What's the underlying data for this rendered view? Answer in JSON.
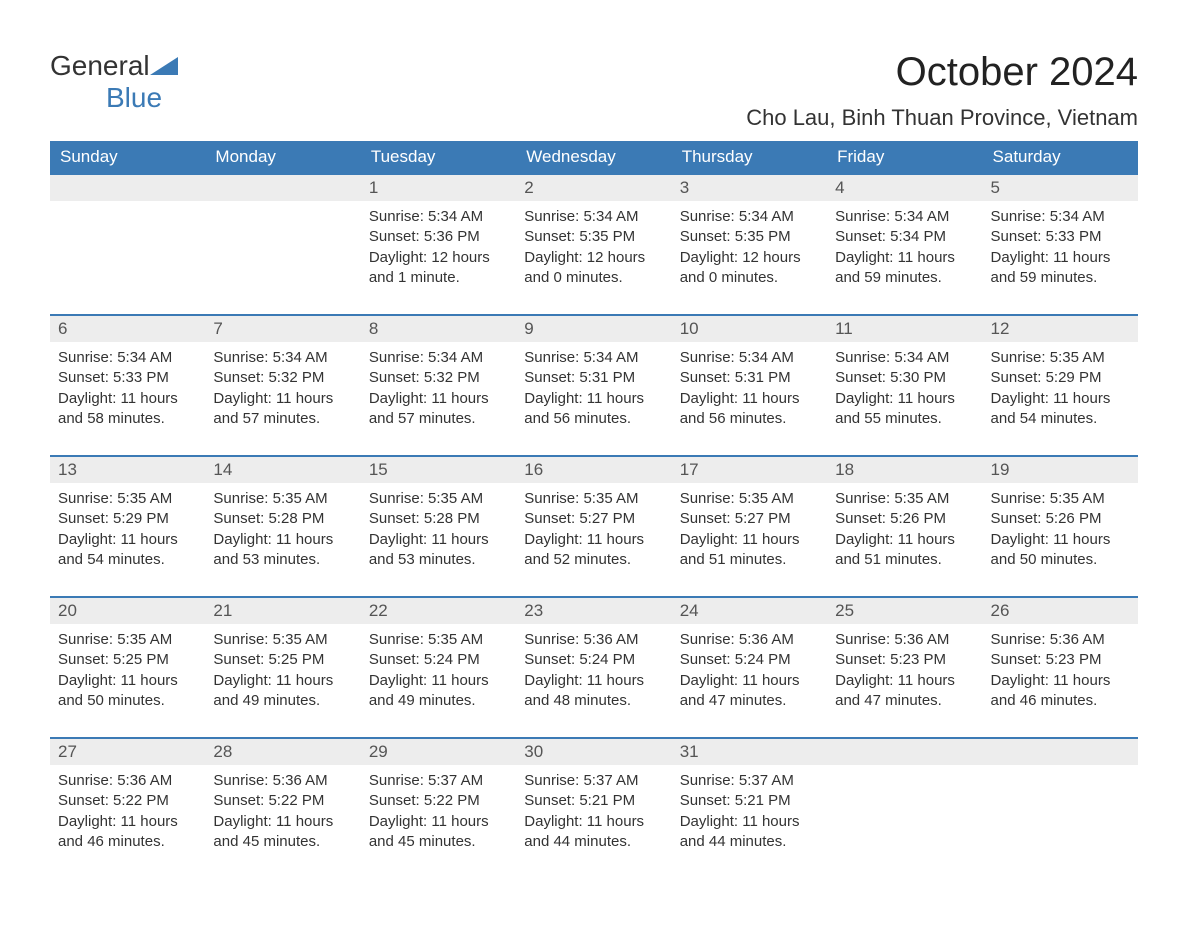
{
  "logo": {
    "text1": "General",
    "text2": "Blue",
    "flag_color": "#3b7ab5"
  },
  "title": "October 2024",
  "location": "Cho Lau, Binh Thuan Province, Vietnam",
  "colors": {
    "header_bg": "#3b7ab5",
    "header_text": "#ffffff",
    "day_header_bg": "#ededed",
    "row_border": "#3b7ab5",
    "text": "#333333"
  },
  "day_labels": [
    "Sunday",
    "Monday",
    "Tuesday",
    "Wednesday",
    "Thursday",
    "Friday",
    "Saturday"
  ],
  "weeks": [
    [
      null,
      null,
      {
        "n": "1",
        "sunrise": "5:34 AM",
        "sunset": "5:36 PM",
        "daylight": "12 hours and 1 minute."
      },
      {
        "n": "2",
        "sunrise": "5:34 AM",
        "sunset": "5:35 PM",
        "daylight": "12 hours and 0 minutes."
      },
      {
        "n": "3",
        "sunrise": "5:34 AM",
        "sunset": "5:35 PM",
        "daylight": "12 hours and 0 minutes."
      },
      {
        "n": "4",
        "sunrise": "5:34 AM",
        "sunset": "5:34 PM",
        "daylight": "11 hours and 59 minutes."
      },
      {
        "n": "5",
        "sunrise": "5:34 AM",
        "sunset": "5:33 PM",
        "daylight": "11 hours and 59 minutes."
      }
    ],
    [
      {
        "n": "6",
        "sunrise": "5:34 AM",
        "sunset": "5:33 PM",
        "daylight": "11 hours and 58 minutes."
      },
      {
        "n": "7",
        "sunrise": "5:34 AM",
        "sunset": "5:32 PM",
        "daylight": "11 hours and 57 minutes."
      },
      {
        "n": "8",
        "sunrise": "5:34 AM",
        "sunset": "5:32 PM",
        "daylight": "11 hours and 57 minutes."
      },
      {
        "n": "9",
        "sunrise": "5:34 AM",
        "sunset": "5:31 PM",
        "daylight": "11 hours and 56 minutes."
      },
      {
        "n": "10",
        "sunrise": "5:34 AM",
        "sunset": "5:31 PM",
        "daylight": "11 hours and 56 minutes."
      },
      {
        "n": "11",
        "sunrise": "5:34 AM",
        "sunset": "5:30 PM",
        "daylight": "11 hours and 55 minutes."
      },
      {
        "n": "12",
        "sunrise": "5:35 AM",
        "sunset": "5:29 PM",
        "daylight": "11 hours and 54 minutes."
      }
    ],
    [
      {
        "n": "13",
        "sunrise": "5:35 AM",
        "sunset": "5:29 PM",
        "daylight": "11 hours and 54 minutes."
      },
      {
        "n": "14",
        "sunrise": "5:35 AM",
        "sunset": "5:28 PM",
        "daylight": "11 hours and 53 minutes."
      },
      {
        "n": "15",
        "sunrise": "5:35 AM",
        "sunset": "5:28 PM",
        "daylight": "11 hours and 53 minutes."
      },
      {
        "n": "16",
        "sunrise": "5:35 AM",
        "sunset": "5:27 PM",
        "daylight": "11 hours and 52 minutes."
      },
      {
        "n": "17",
        "sunrise": "5:35 AM",
        "sunset": "5:27 PM",
        "daylight": "11 hours and 51 minutes."
      },
      {
        "n": "18",
        "sunrise": "5:35 AM",
        "sunset": "5:26 PM",
        "daylight": "11 hours and 51 minutes."
      },
      {
        "n": "19",
        "sunrise": "5:35 AM",
        "sunset": "5:26 PM",
        "daylight": "11 hours and 50 minutes."
      }
    ],
    [
      {
        "n": "20",
        "sunrise": "5:35 AM",
        "sunset": "5:25 PM",
        "daylight": "11 hours and 50 minutes."
      },
      {
        "n": "21",
        "sunrise": "5:35 AM",
        "sunset": "5:25 PM",
        "daylight": "11 hours and 49 minutes."
      },
      {
        "n": "22",
        "sunrise": "5:35 AM",
        "sunset": "5:24 PM",
        "daylight": "11 hours and 49 minutes."
      },
      {
        "n": "23",
        "sunrise": "5:36 AM",
        "sunset": "5:24 PM",
        "daylight": "11 hours and 48 minutes."
      },
      {
        "n": "24",
        "sunrise": "5:36 AM",
        "sunset": "5:24 PM",
        "daylight": "11 hours and 47 minutes."
      },
      {
        "n": "25",
        "sunrise": "5:36 AM",
        "sunset": "5:23 PM",
        "daylight": "11 hours and 47 minutes."
      },
      {
        "n": "26",
        "sunrise": "5:36 AM",
        "sunset": "5:23 PM",
        "daylight": "11 hours and 46 minutes."
      }
    ],
    [
      {
        "n": "27",
        "sunrise": "5:36 AM",
        "sunset": "5:22 PM",
        "daylight": "11 hours and 46 minutes."
      },
      {
        "n": "28",
        "sunrise": "5:36 AM",
        "sunset": "5:22 PM",
        "daylight": "11 hours and 45 minutes."
      },
      {
        "n": "29",
        "sunrise": "5:37 AM",
        "sunset": "5:22 PM",
        "daylight": "11 hours and 45 minutes."
      },
      {
        "n": "30",
        "sunrise": "5:37 AM",
        "sunset": "5:21 PM",
        "daylight": "11 hours and 44 minutes."
      },
      {
        "n": "31",
        "sunrise": "5:37 AM",
        "sunset": "5:21 PM",
        "daylight": "11 hours and 44 minutes."
      },
      null,
      null
    ]
  ],
  "labels": {
    "sunrise": "Sunrise:",
    "sunset": "Sunset:",
    "daylight": "Daylight:"
  }
}
